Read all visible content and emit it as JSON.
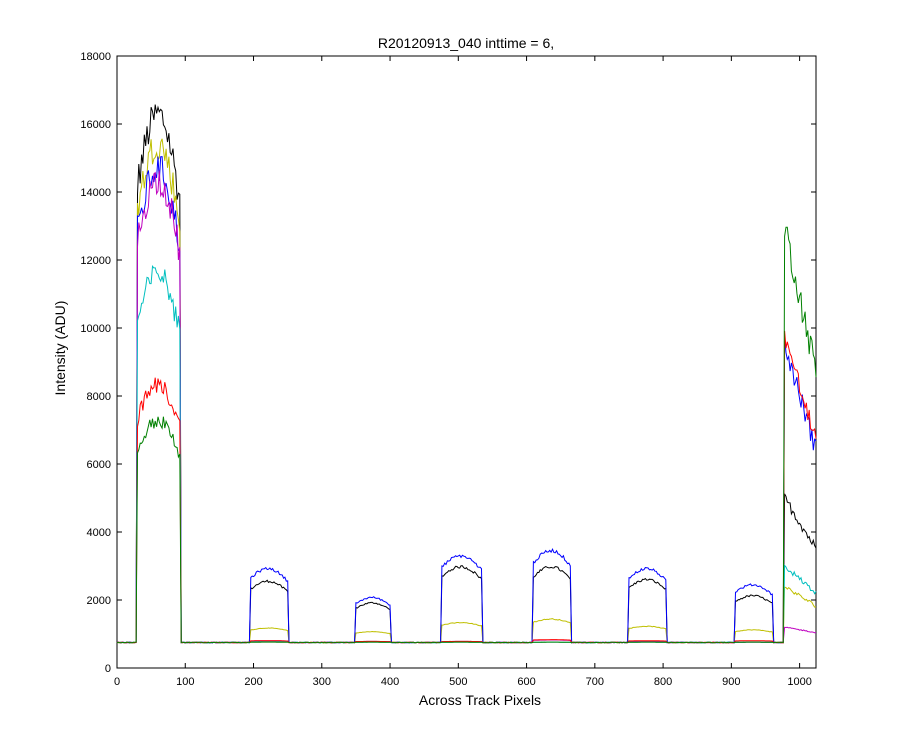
{
  "chart_data": {
    "type": "line",
    "title": "R20120913_040 inttime = 6,",
    "xlabel": "Across Track Pixels",
    "ylabel": "Intensity (ADU)",
    "xlim": [
      0,
      1024
    ],
    "ylim": [
      0,
      18000
    ],
    "xticks": [
      "0",
      "100",
      "200",
      "300",
      "400",
      "500",
      "600",
      "700",
      "800",
      "900",
      "1000"
    ],
    "yticks": [
      "0",
      "2000",
      "4000",
      "6000",
      "8000",
      "10000",
      "12000",
      "14000",
      "16000",
      "18000"
    ],
    "grid": false,
    "legend": "none",
    "baseline": 750,
    "segments": [
      {
        "x0": 30,
        "x1": 93
      },
      {
        "x0": 195,
        "x1": 250
      },
      {
        "x0": 350,
        "x1": 400
      },
      {
        "x0": 475,
        "x1": 535
      },
      {
        "x0": 610,
        "x1": 665
      },
      {
        "x0": 750,
        "x1": 805
      },
      {
        "x0": 905,
        "x1": 960
      },
      {
        "x0": 978,
        "x1": 1024
      }
    ],
    "series": [
      {
        "color": "#000000",
        "levels": [
          15400,
          2450,
          1850,
          2850,
          2850,
          2500,
          2050,
          5000
        ]
      },
      {
        "color": "#bfbf00",
        "levels": [
          14600,
          1150,
          1050,
          1300,
          1400,
          1200,
          1100,
          2400
        ]
      },
      {
        "color": "#0000ff",
        "levels": [
          13900,
          2800,
          2000,
          3150,
          3300,
          2800,
          2350,
          9500
        ]
      },
      {
        "color": "#bf00bf",
        "levels": [
          13600,
          800,
          780,
          780,
          820,
          780,
          760,
          1200
        ]
      },
      {
        "color": "#00bfbf",
        "levels": [
          11000,
          780,
          760,
          760,
          760,
          760,
          760,
          3000
        ]
      },
      {
        "color": "#ff0000",
        "levels": [
          7900,
          800,
          780,
          780,
          830,
          800,
          800,
          9800
        ]
      },
      {
        "color": "#008000",
        "levels": [
          6900,
          760,
          760,
          760,
          760,
          760,
          760,
          13000
        ]
      }
    ]
  }
}
